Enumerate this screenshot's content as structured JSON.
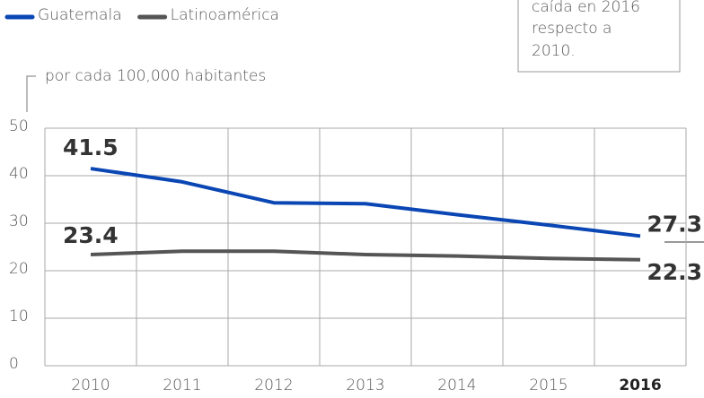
{
  "chart_data": {
    "type": "line",
    "subtitle": "por cada 100,000 habitantes",
    "annotation": [
      "caída en 2016",
      "respecto a",
      "2010."
    ],
    "categories": [
      "2010",
      "2011",
      "2012",
      "2013",
      "2014",
      "2015",
      "2016"
    ],
    "series": [
      {
        "name": "Guatemala",
        "color": "#0a46b4",
        "values": [
          41.5,
          38.7,
          34.3,
          34.1,
          31.8,
          29.6,
          27.3
        ]
      },
      {
        "name": "Latinoamérica",
        "color": "#555555",
        "values": [
          23.4,
          24.1,
          24.1,
          23.4,
          23.1,
          22.6,
          22.3
        ]
      }
    ],
    "ylim": [
      0,
      50
    ],
    "yticks": [
      0,
      10,
      20,
      30,
      40,
      50
    ],
    "grid": true
  }
}
